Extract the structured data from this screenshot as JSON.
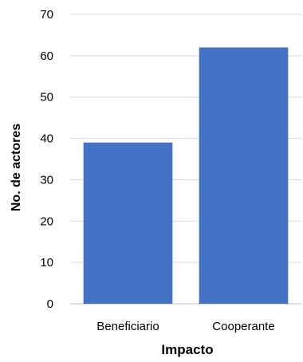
{
  "chart_data": {
    "type": "bar",
    "categories": [
      "Beneficiario",
      "Cooperante"
    ],
    "values": [
      39,
      62
    ],
    "xlabel": "Impacto",
    "ylabel": "No. de actores",
    "ylim": [
      0,
      70
    ],
    "yticks": [
      "0",
      "10",
      "20",
      "30",
      "40",
      "50",
      "60",
      "70"
    ],
    "grid": true,
    "bar_color": "#4472c4",
    "grid_color": "#d9d9d9"
  }
}
